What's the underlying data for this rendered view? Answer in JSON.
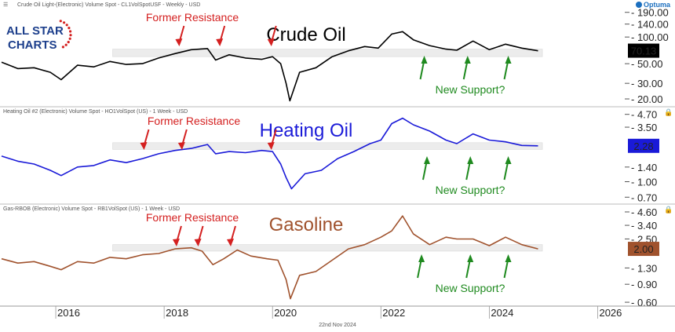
{
  "brand": {
    "logo_line1": "ALL STAR",
    "logo_line2": "CHARTS",
    "optuma": "Optuma"
  },
  "footer": {
    "date": "22nd Nov 2024"
  },
  "colors": {
    "annotation_red": "#d42020",
    "annotation_green": "#1f8a1f",
    "support_band": "#ececec"
  },
  "chart_data": [
    {
      "type": "line",
      "header": "Crude Oil Light-(Electronic) Volume Spot - CL1VolSpotUSF - Weekly - USD",
      "title": "Crude Oil",
      "title_color": "#000000",
      "line_color": "#000000",
      "x_ticks": [
        "2016",
        "2018",
        "2020",
        "2022",
        "2024",
        "2026"
      ],
      "y_scale": "log",
      "y_ticks": [
        "190.00",
        "140.00",
        "100.00",
        "70.13",
        "50.00",
        "30.00",
        "20.00"
      ],
      "last_value": "70.13",
      "x": [
        2015.0,
        2015.3,
        2015.6,
        2015.9,
        2016.1,
        2016.4,
        2016.7,
        2017.0,
        2017.3,
        2017.6,
        2017.9,
        2018.2,
        2018.5,
        2018.8,
        2018.95,
        2019.2,
        2019.5,
        2019.8,
        2020.0,
        2020.15,
        2020.25,
        2020.32,
        2020.5,
        2020.8,
        2021.1,
        2021.4,
        2021.7,
        2021.95,
        2022.2,
        2022.4,
        2022.6,
        2022.9,
        2023.2,
        2023.4,
        2023.7,
        2024.0,
        2024.3,
        2024.6,
        2024.9
      ],
      "values": [
        52,
        44,
        45,
        40,
        33,
        48,
        46,
        53,
        49,
        50,
        58,
        65,
        72,
        74,
        55,
        63,
        58,
        56,
        60,
        50,
        30,
        19,
        40,
        45,
        60,
        70,
        78,
        75,
        108,
        115,
        93,
        80,
        73,
        71,
        90,
        72,
        83,
        75,
        70
      ],
      "annotations": {
        "resistance_label": "Former Resistance",
        "resistance_arrows_x": [
          2018.25,
          2019.0,
          2019.95
        ],
        "support_label": "New Support?",
        "support_arrows_x": [
          2022.8,
          2023.6,
          2024.35
        ],
        "band": [
          60,
          73
        ]
      }
    },
    {
      "type": "line",
      "header": "Heating Oil #2 (Electronic) Volume Spot - HO1VolSpot (US) - 1 Week - USD",
      "title": "Heating Oil",
      "title_color": "#1a1ad8",
      "line_color": "#1a1ad8",
      "x_ticks": [],
      "y_scale": "log",
      "y_ticks": [
        "4.70",
        "3.50",
        "2.28",
        "1.40",
        "1.00",
        "0.70"
      ],
      "last_value": "2.28",
      "x": [
        2015.0,
        2015.3,
        2015.6,
        2015.9,
        2016.1,
        2016.4,
        2016.7,
        2017.0,
        2017.3,
        2017.6,
        2017.9,
        2018.2,
        2018.5,
        2018.8,
        2018.95,
        2019.2,
        2019.5,
        2019.8,
        2020.0,
        2020.15,
        2020.25,
        2020.35,
        2020.6,
        2020.9,
        2021.2,
        2021.5,
        2021.8,
        2022.0,
        2022.2,
        2022.4,
        2022.6,
        2022.9,
        2023.2,
        2023.4,
        2023.7,
        2024.0,
        2024.3,
        2024.6,
        2024.9
      ],
      "values": [
        1.8,
        1.6,
        1.5,
        1.3,
        1.15,
        1.4,
        1.45,
        1.65,
        1.55,
        1.7,
        1.9,
        2.05,
        2.15,
        2.35,
        1.9,
        2.0,
        1.95,
        2.05,
        2.0,
        1.5,
        1.1,
        0.85,
        1.2,
        1.3,
        1.7,
        2.0,
        2.4,
        2.6,
        3.8,
        4.3,
        3.7,
        3.2,
        2.6,
        2.4,
        3.0,
        2.6,
        2.5,
        2.3,
        2.28
      ],
      "annotations": {
        "resistance_label": "Former Resistance",
        "resistance_arrows_x": [
          2017.6,
          2018.3,
          2019.95
        ],
        "support_label": "New Support?",
        "support_arrows_x": [
          2022.85,
          2023.65,
          2024.35
        ],
        "band": [
          2.1,
          2.45
        ]
      }
    },
    {
      "type": "line",
      "header": "Gas-RBOB (Electronic) Volume Spot - RB1VolSpot (US) - 1 Week - USD",
      "title": "Gasoline",
      "title_color": "#a0522d",
      "line_color": "#a0522d",
      "x_ticks": [
        "2016",
        "2018",
        "2020",
        "2022",
        "2024",
        "2026"
      ],
      "y_scale": "log",
      "y_ticks": [
        "4.60",
        "3.40",
        "2.50",
        "2.00",
        "1.30",
        "0.90",
        "0.60"
      ],
      "last_value": "2.00",
      "x": [
        2015.0,
        2015.3,
        2015.6,
        2015.9,
        2016.1,
        2016.4,
        2016.7,
        2017.0,
        2017.3,
        2017.6,
        2017.9,
        2018.2,
        2018.5,
        2018.7,
        2018.9,
        2019.1,
        2019.35,
        2019.6,
        2019.9,
        2020.1,
        2020.25,
        2020.33,
        2020.5,
        2020.8,
        2021.1,
        2021.4,
        2021.7,
        2022.0,
        2022.2,
        2022.4,
        2022.6,
        2022.9,
        2023.2,
        2023.4,
        2023.7,
        2024.0,
        2024.3,
        2024.6,
        2024.9
      ],
      "values": [
        1.6,
        1.45,
        1.5,
        1.35,
        1.25,
        1.5,
        1.45,
        1.65,
        1.6,
        1.75,
        1.8,
        2.0,
        2.05,
        1.9,
        1.4,
        1.6,
        1.95,
        1.7,
        1.6,
        1.55,
        1.0,
        0.65,
        1.1,
        1.2,
        1.55,
        2.0,
        2.2,
        2.6,
        3.0,
        4.2,
        2.8,
        2.2,
        2.6,
        2.5,
        2.5,
        2.15,
        2.6,
        2.2,
        2.0
      ],
      "annotations": {
        "resistance_label": "Former Resistance",
        "resistance_arrows_x": [
          2018.2,
          2018.6,
          2019.2
        ],
        "support_label": "New Support?",
        "support_arrows_x": [
          2022.75,
          2023.65,
          2024.35
        ],
        "band": [
          1.9,
          2.2
        ]
      }
    }
  ]
}
